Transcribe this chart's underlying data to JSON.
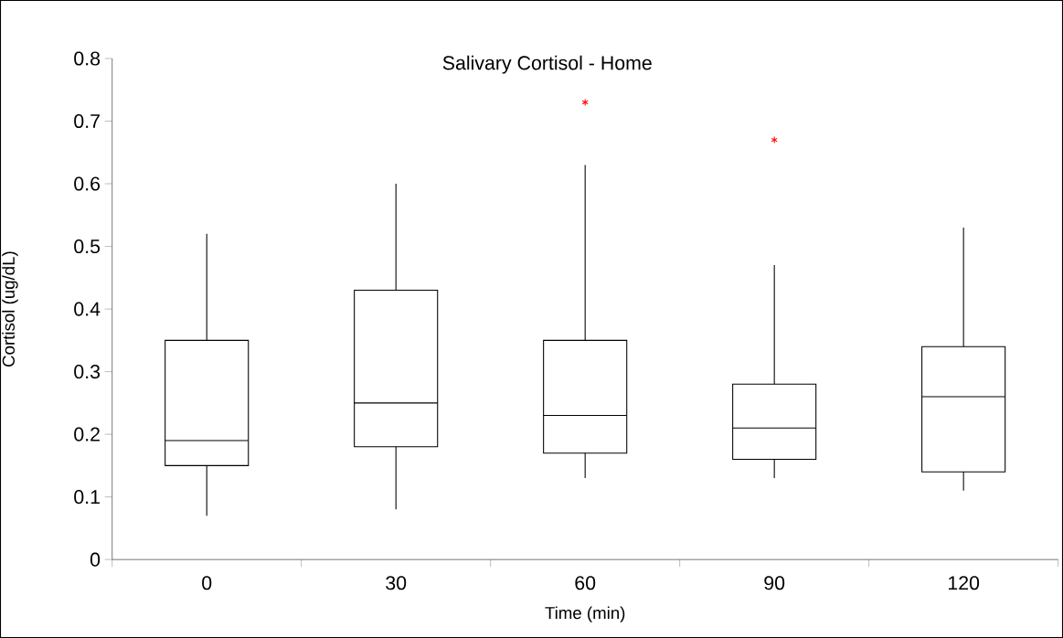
{
  "chart_data": {
    "type": "box",
    "title": "Salivary Cortisol - Home",
    "xlabel": "Time (min)",
    "ylabel": "Cortisol (ug/dL)",
    "categories": [
      "0",
      "30",
      "60",
      "90",
      "120"
    ],
    "boxes": [
      {
        "low": 0.07,
        "q1": 0.15,
        "median": 0.19,
        "q3": 0.35,
        "high": 0.52
      },
      {
        "low": 0.08,
        "q1": 0.18,
        "median": 0.25,
        "q3": 0.43,
        "high": 0.6
      },
      {
        "low": 0.13,
        "q1": 0.17,
        "median": 0.23,
        "q3": 0.35,
        "high": 0.63,
        "outliers": [
          0.73
        ]
      },
      {
        "low": 0.13,
        "q1": 0.16,
        "median": 0.21,
        "q3": 0.28,
        "high": 0.47,
        "outliers": [
          0.67
        ]
      },
      {
        "low": 0.11,
        "q1": 0.14,
        "median": 0.26,
        "q3": 0.34,
        "high": 0.53
      }
    ],
    "ylim": [
      0,
      0.8
    ],
    "yticks": [
      0,
      0.1,
      0.2,
      0.3,
      0.4,
      0.5,
      0.6,
      0.7,
      0.8
    ]
  }
}
